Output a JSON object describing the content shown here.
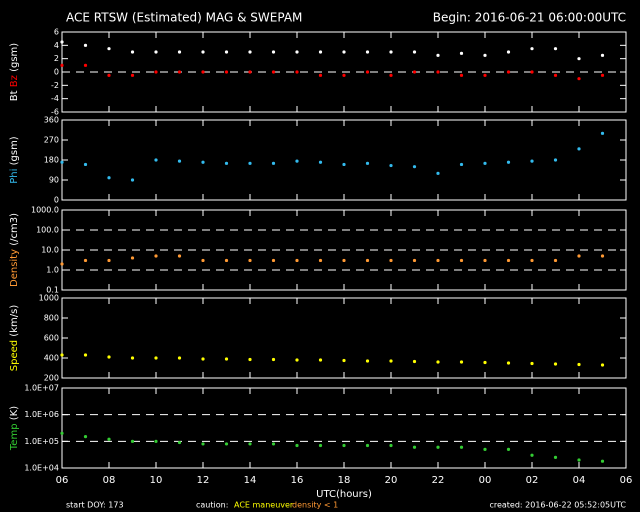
{
  "header": {
    "title": "ACE RTSW (Estimated) MAG & SWEPAM",
    "begin": "Begin: 2016-06-21 06:00:00UTC"
  },
  "footer": {
    "start": "start DOY: 173",
    "caution": "caution:",
    "maneuver": "ACE maneuver",
    "density": "density < 1",
    "created": "created: 2016-06-22 05:52:05UTC"
  },
  "chart_data": [
    {
      "type": "scatter",
      "ylabel": "(gsm)",
      "ylim": [
        -6,
        6
      ],
      "yticks": [
        -6,
        -4,
        -2,
        0,
        2,
        4,
        6
      ],
      "dashed_lines": [
        0
      ],
      "x": [
        6,
        7,
        8,
        9,
        10,
        11,
        12,
        13,
        14,
        15,
        16,
        17,
        18,
        19,
        20,
        21,
        22,
        23,
        24,
        25,
        26,
        27,
        28,
        29
      ],
      "series": [
        {
          "name": "Bt",
          "color": "#ffffff",
          "values": [
            4.5,
            4,
            3.5,
            3,
            3,
            3,
            3,
            3,
            3,
            3,
            3,
            3,
            3,
            3,
            3,
            3,
            2.5,
            2.8,
            2.5,
            3,
            3.5,
            3.5,
            2,
            2.5
          ]
        },
        {
          "name": "Bz",
          "color": "#ff0000",
          "values": [
            1,
            1,
            -0.5,
            -0.5,
            0,
            0,
            0,
            0,
            0,
            0,
            0,
            -0.5,
            -0.5,
            0,
            -0.5,
            0,
            0,
            -0.5,
            -0.5,
            0,
            0,
            -0.5,
            -1,
            -0.5
          ]
        }
      ]
    },
    {
      "type": "scatter",
      "ylabel": "(gsm)",
      "ylim": [
        0,
        360
      ],
      "yticks": [
        0,
        90,
        180,
        270,
        360
      ],
      "x": [
        6,
        7,
        8,
        9,
        10,
        11,
        12,
        13,
        14,
        15,
        16,
        17,
        18,
        19,
        20,
        21,
        22,
        23,
        24,
        25,
        26,
        27,
        28,
        29
      ],
      "series": [
        {
          "name": "Phi",
          "color": "#33bbee",
          "values": [
            170,
            160,
            100,
            90,
            180,
            175,
            170,
            165,
            165,
            165,
            175,
            170,
            160,
            165,
            155,
            150,
            120,
            160,
            165,
            170,
            175,
            180,
            230,
            300
          ]
        }
      ]
    },
    {
      "type": "scatter",
      "log": true,
      "ylabel": "(/cm3)",
      "ylim": [
        0.1,
        1000
      ],
      "yticks": [
        {
          "value": 0.1,
          "label": "0.1"
        },
        {
          "value": 1,
          "label": "1.0"
        },
        {
          "value": 10,
          "label": "10.0"
        },
        {
          "value": 100,
          "label": "100.0"
        },
        {
          "value": 1000,
          "label": "1000.0"
        }
      ],
      "dashed_lines": [
        1,
        10,
        100
      ],
      "x": [
        6,
        7,
        8,
        9,
        10,
        11,
        12,
        13,
        14,
        15,
        16,
        17,
        18,
        19,
        20,
        21,
        22,
        23,
        24,
        25,
        26,
        27,
        28,
        29
      ],
      "series": [
        {
          "name": "Density",
          "color": "#ff9933",
          "values": [
            2,
            3,
            3,
            4,
            5,
            5,
            3,
            3,
            3,
            3,
            3,
            3,
            3,
            3,
            3,
            3,
            3,
            3,
            3,
            3,
            3,
            3,
            5,
            5
          ]
        }
      ]
    },
    {
      "type": "scatter",
      "ylabel": "(km/s)",
      "ylim": [
        200,
        1000
      ],
      "yticks": [
        200,
        400,
        600,
        800,
        1000
      ],
      "x": [
        6,
        7,
        8,
        9,
        10,
        11,
        12,
        13,
        14,
        15,
        16,
        17,
        18,
        19,
        20,
        21,
        22,
        23,
        24,
        25,
        26,
        27,
        28,
        29
      ],
      "series": [
        {
          "name": "Speed",
          "color": "#ffff00",
          "values": [
            430,
            430,
            410,
            400,
            400,
            400,
            390,
            390,
            385,
            385,
            380,
            380,
            375,
            370,
            370,
            365,
            360,
            360,
            355,
            350,
            345,
            340,
            335,
            330
          ]
        }
      ]
    },
    {
      "type": "scatter",
      "log": true,
      "ylabel": "(K)",
      "ylim": [
        10000,
        10000000
      ],
      "yticks": [
        {
          "value": 10000,
          "label": "1.0E+04"
        },
        {
          "value": 100000,
          "label": "1.0E+05"
        },
        {
          "value": 1000000,
          "label": "1.0E+06"
        },
        {
          "value": 10000000,
          "label": "1.0E+07"
        }
      ],
      "dashed_lines": [
        100000,
        1000000
      ],
      "x": [
        6,
        7,
        8,
        9,
        10,
        11,
        12,
        13,
        14,
        15,
        16,
        17,
        18,
        19,
        20,
        21,
        22,
        23,
        24,
        25,
        26,
        27,
        28,
        29
      ],
      "series": [
        {
          "name": "Temp",
          "color": "#33cc33",
          "values": [
            200000,
            150000,
            120000,
            100000,
            100000,
            90000,
            80000,
            80000,
            80000,
            80000,
            70000,
            70000,
            70000,
            70000,
            70000,
            60000,
            60000,
            60000,
            50000,
            50000,
            30000,
            25000,
            20000,
            18000
          ]
        }
      ],
      "xlabel": "UTC(hours)",
      "xlim": [
        6,
        30
      ],
      "xticks": [
        {
          "value": 6,
          "label": "06"
        },
        {
          "value": 8,
          "label": "08"
        },
        10,
        12,
        14,
        16,
        18,
        20,
        22,
        {
          "value": 24,
          "label": "00"
        },
        {
          "value": 26,
          "label": "02"
        },
        {
          "value": 28,
          "label": "04"
        },
        {
          "value": 30,
          "label": "06"
        }
      ]
    }
  ]
}
